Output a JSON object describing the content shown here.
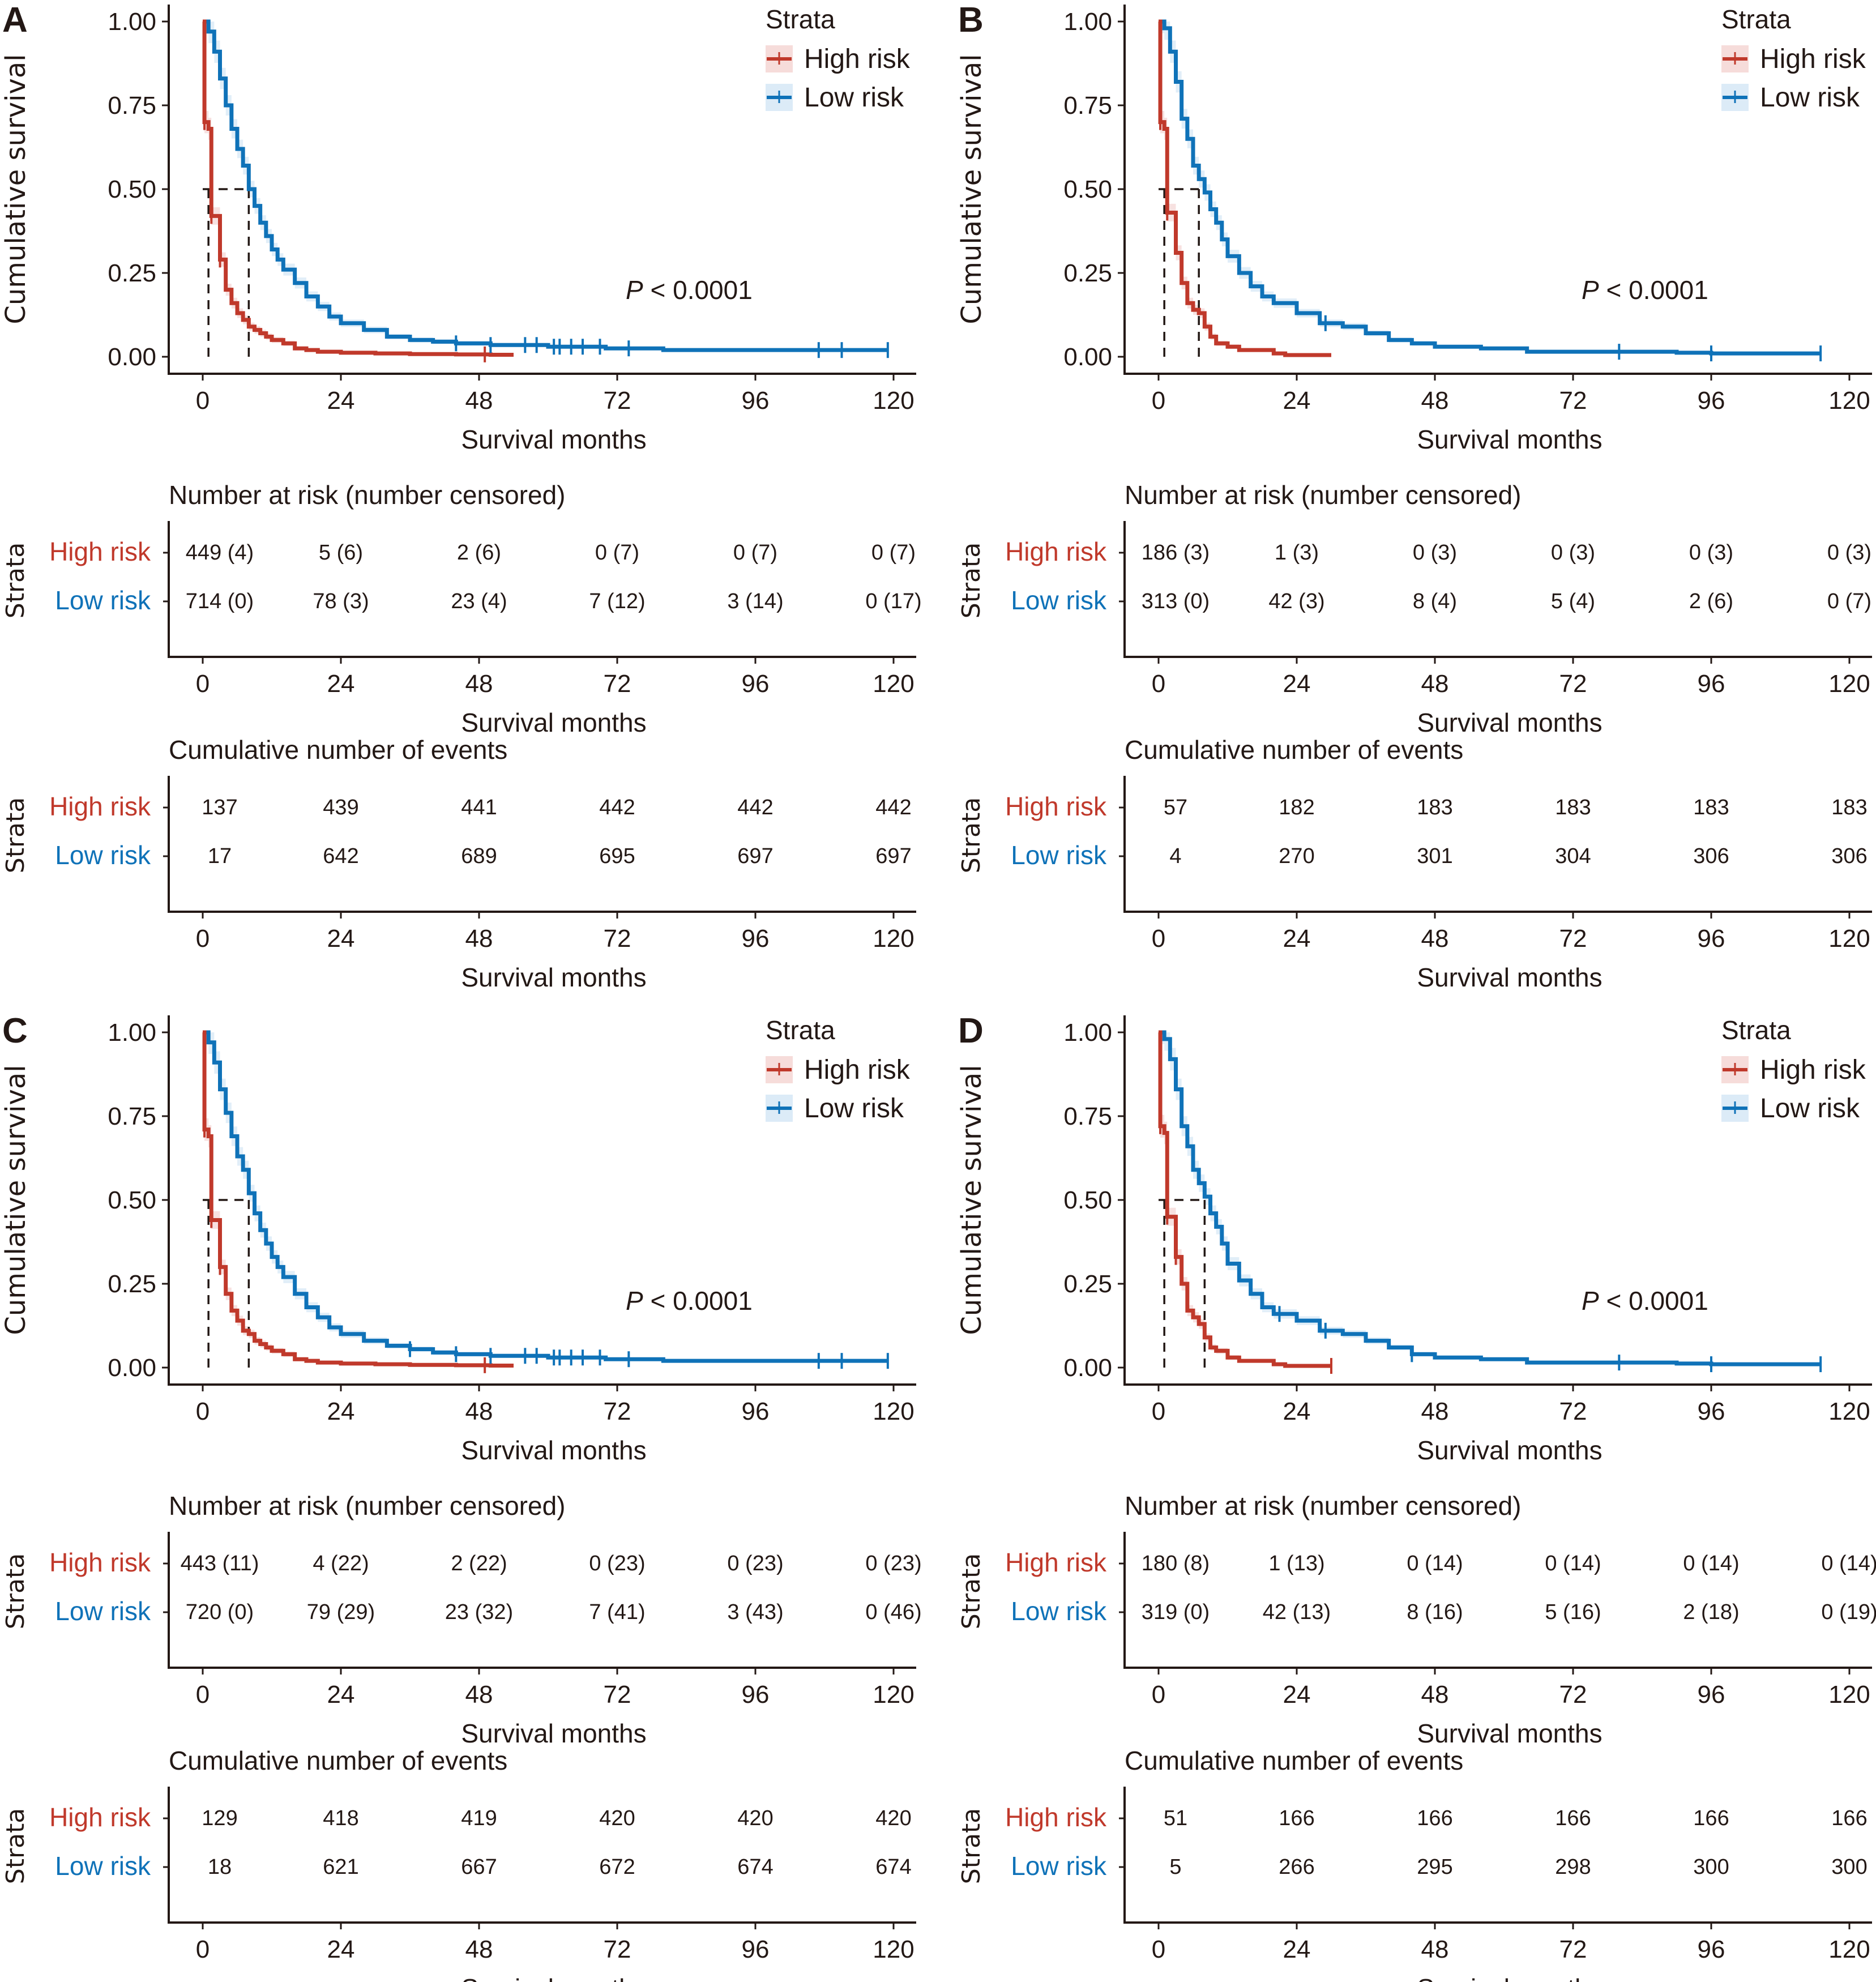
{
  "colors": {
    "high": "#c0392b",
    "low": "#0f72b8",
    "high_band": "#f6dcda",
    "low_band": "#dcebf7",
    "ink": "#231815"
  },
  "common": {
    "ylabel": "Cumulative survival",
    "xlabel": "Survival months",
    "legend_title": "Strata",
    "legend_high": "High risk",
    "legend_low": "Low risk",
    "p_prefix": "P",
    "p_rest": " < 0.0001",
    "risk_title": "Number at risk (number censored)",
    "events_title": "Cumulative number of events",
    "strata_label": "Strata",
    "row_high": "High risk",
    "row_low": "Low risk",
    "x_ticks": [
      "0",
      "24",
      "48",
      "72",
      "96",
      "120"
    ],
    "y_ticks": [
      "0.00",
      "0.25",
      "0.50",
      "0.75",
      "1.00"
    ]
  },
  "chart_data": [
    {
      "panel": "A",
      "type": "line",
      "title": "",
      "xlabel": "Survival months",
      "ylabel": "Cumulative survival",
      "xlim": [
        0,
        120
      ],
      "ylim": [
        0,
        1
      ],
      "x_ticks": [
        0,
        24,
        48,
        72,
        96,
        120
      ],
      "y_ticks": [
        0,
        0.25,
        0.5,
        0.75,
        1.0
      ],
      "legend": {
        "title": "Strata",
        "entries": [
          "High risk",
          "Low risk"
        ],
        "position": "top-right"
      },
      "annotation": "P < 0.0001",
      "median_survival": {
        "High risk": 1,
        "Low risk": 8
      },
      "series": [
        {
          "name": "High risk",
          "x": [
            0,
            0.3,
            1,
            1.5,
            2,
            3,
            4,
            5,
            6,
            7,
            8,
            9,
            10,
            11,
            12,
            14,
            16,
            18,
            20,
            24,
            30,
            36,
            44,
            50,
            54
          ],
          "y": [
            1.0,
            0.7,
            0.68,
            0.42,
            0.42,
            0.29,
            0.2,
            0.16,
            0.13,
            0.11,
            0.09,
            0.08,
            0.07,
            0.06,
            0.05,
            0.04,
            0.025,
            0.02,
            0.015,
            0.012,
            0.01,
            0.008,
            0.007,
            0.006,
            0.006
          ]
        },
        {
          "name": "Low risk",
          "x": [
            0,
            1,
            2,
            3,
            4,
            5,
            6,
            7,
            8,
            9,
            10,
            11,
            12,
            13,
            14,
            16,
            18,
            20,
            22,
            24,
            28,
            32,
            36,
            40,
            44,
            50,
            60,
            70,
            80,
            100,
            119
          ],
          "y": [
            1.0,
            0.97,
            0.91,
            0.83,
            0.75,
            0.68,
            0.62,
            0.57,
            0.5,
            0.45,
            0.4,
            0.36,
            0.32,
            0.29,
            0.26,
            0.22,
            0.18,
            0.15,
            0.12,
            0.1,
            0.08,
            0.06,
            0.05,
            0.045,
            0.04,
            0.035,
            0.03,
            0.025,
            0.02,
            0.02,
            0.02
          ]
        }
      ],
      "censor_low_x": [
        44,
        50,
        56,
        58,
        61,
        62,
        64,
        66,
        69,
        74,
        107,
        111,
        119
      ],
      "censor_high_x": [
        0.3,
        1.5,
        3,
        49
      ],
      "risk_table": {
        "High risk": [
          "449 (4)",
          "5 (6)",
          "2 (6)",
          "0 (7)",
          "0 (7)",
          "0 (7)"
        ],
        "Low risk": [
          "714 (0)",
          "78 (3)",
          "23 (4)",
          "7 (12)",
          "3 (14)",
          "0 (17)"
        ]
      },
      "events_table": {
        "High risk": [
          "137",
          "439",
          "441",
          "442",
          "442",
          "442"
        ],
        "Low risk": [
          "17",
          "642",
          "689",
          "695",
          "697",
          "697"
        ]
      }
    },
    {
      "panel": "B",
      "type": "line",
      "title": "",
      "xlabel": "Survival months",
      "ylabel": "Cumulative survival",
      "xlim": [
        0,
        120
      ],
      "ylim": [
        0,
        1
      ],
      "x_ticks": [
        0,
        24,
        48,
        72,
        96,
        120
      ],
      "y_ticks": [
        0,
        0.25,
        0.5,
        0.75,
        1.0
      ],
      "legend": {
        "title": "Strata",
        "entries": [
          "High risk",
          "Low risk"
        ],
        "position": "top-right"
      },
      "annotation": "P < 0.0001",
      "median_survival": {
        "High risk": 1,
        "Low risk": 7
      },
      "series": [
        {
          "name": "High risk",
          "x": [
            0,
            0.3,
            1,
            1.5,
            2,
            3,
            4,
            5,
            6,
            7,
            8,
            9,
            10,
            12,
            14,
            18,
            20,
            22,
            30
          ],
          "y": [
            1.0,
            0.7,
            0.68,
            0.43,
            0.43,
            0.31,
            0.22,
            0.16,
            0.14,
            0.13,
            0.09,
            0.06,
            0.04,
            0.03,
            0.02,
            0.02,
            0.01,
            0.005,
            0.005
          ]
        },
        {
          "name": "Low risk",
          "x": [
            0,
            1,
            2,
            3,
            4,
            5,
            6,
            7,
            8,
            9,
            10,
            11,
            12,
            14,
            16,
            18,
            20,
            24,
            28,
            32,
            36,
            40,
            44,
            48,
            56,
            64,
            80,
            90,
            96,
            115
          ],
          "y": [
            1.0,
            0.98,
            0.91,
            0.82,
            0.71,
            0.65,
            0.57,
            0.53,
            0.49,
            0.44,
            0.4,
            0.35,
            0.3,
            0.25,
            0.21,
            0.18,
            0.16,
            0.13,
            0.1,
            0.09,
            0.07,
            0.05,
            0.04,
            0.03,
            0.025,
            0.015,
            0.015,
            0.012,
            0.01,
            0.01
          ]
        }
      ],
      "censor_low_x": [
        29,
        80,
        96,
        115
      ],
      "censor_high_x": [
        0.3,
        1.5
      ],
      "risk_table": {
        "High risk": [
          "186 (3)",
          "1 (3)",
          "0 (3)",
          "0 (3)",
          "0 (3)",
          "0 (3)"
        ],
        "Low risk": [
          "313 (0)",
          "42 (3)",
          "8 (4)",
          "5 (4)",
          "2 (6)",
          "0 (7)"
        ]
      },
      "events_table": {
        "High risk": [
          "57",
          "182",
          "183",
          "183",
          "183",
          "183"
        ],
        "Low risk": [
          "4",
          "270",
          "301",
          "304",
          "306",
          "306"
        ]
      }
    },
    {
      "panel": "C",
      "type": "line",
      "title": "",
      "xlabel": "Survival months",
      "ylabel": "Cumulative survival",
      "xlim": [
        0,
        120
      ],
      "ylim": [
        0,
        1
      ],
      "x_ticks": [
        0,
        24,
        48,
        72,
        96,
        120
      ],
      "y_ticks": [
        0,
        0.25,
        0.5,
        0.75,
        1.0
      ],
      "legend": {
        "title": "Strata",
        "entries": [
          "High risk",
          "Low risk"
        ],
        "position": "top-right"
      },
      "annotation": "P < 0.0001",
      "median_survival": {
        "High risk": 1,
        "Low risk": 8
      },
      "series": [
        {
          "name": "High risk",
          "x": [
            0,
            0.3,
            1,
            1.5,
            2,
            3,
            4,
            5,
            6,
            7,
            8,
            9,
            10,
            11,
            12,
            14,
            16,
            18,
            20,
            24,
            30,
            36,
            44,
            50,
            54
          ],
          "y": [
            1.0,
            0.71,
            0.69,
            0.44,
            0.44,
            0.3,
            0.22,
            0.17,
            0.14,
            0.11,
            0.1,
            0.08,
            0.07,
            0.06,
            0.05,
            0.04,
            0.025,
            0.02,
            0.015,
            0.012,
            0.01,
            0.008,
            0.007,
            0.006,
            0.006
          ]
        },
        {
          "name": "Low risk",
          "x": [
            0,
            1,
            2,
            3,
            4,
            5,
            6,
            7,
            8,
            9,
            10,
            11,
            12,
            13,
            14,
            16,
            18,
            20,
            22,
            24,
            28,
            32,
            36,
            40,
            44,
            50,
            60,
            70,
            80,
            100,
            119
          ],
          "y": [
            1.0,
            0.97,
            0.91,
            0.83,
            0.76,
            0.69,
            0.63,
            0.59,
            0.52,
            0.46,
            0.41,
            0.37,
            0.33,
            0.3,
            0.27,
            0.22,
            0.18,
            0.15,
            0.12,
            0.1,
            0.08,
            0.065,
            0.055,
            0.045,
            0.04,
            0.035,
            0.03,
            0.025,
            0.02,
            0.02,
            0.02
          ]
        }
      ],
      "censor_low_x": [
        36,
        44,
        50,
        56,
        58,
        61,
        62,
        64,
        66,
        69,
        74,
        107,
        111,
        119
      ],
      "censor_high_x": [
        0.3,
        1.5,
        3,
        49
      ],
      "risk_table": {
        "High risk": [
          "443 (11)",
          "4 (22)",
          "2 (22)",
          "0 (23)",
          "0 (23)",
          "0 (23)"
        ],
        "Low risk": [
          "720 (0)",
          "79 (29)",
          "23 (32)",
          "7 (41)",
          "3 (43)",
          "0 (46)"
        ]
      },
      "events_table": {
        "High risk": [
          "129",
          "418",
          "419",
          "420",
          "420",
          "420"
        ],
        "Low risk": [
          "18",
          "621",
          "667",
          "672",
          "674",
          "674"
        ]
      }
    },
    {
      "panel": "D",
      "type": "line",
      "title": "",
      "xlabel": "Survival months",
      "ylabel": "Cumulative survival",
      "xlim": [
        0,
        120
      ],
      "ylim": [
        0,
        1
      ],
      "x_ticks": [
        0,
        24,
        48,
        72,
        96,
        120
      ],
      "y_ticks": [
        0,
        0.25,
        0.5,
        0.75,
        1.0
      ],
      "legend": {
        "title": "Strata",
        "entries": [
          "High risk",
          "Low risk"
        ],
        "position": "top-right"
      },
      "annotation": "P < 0.0001",
      "median_survival": {
        "High risk": 1,
        "Low risk": 8
      },
      "series": [
        {
          "name": "High risk",
          "x": [
            0,
            0.3,
            1,
            1.5,
            2,
            3,
            4,
            5,
            6,
            7,
            8,
            9,
            10,
            12,
            14,
            18,
            20,
            22,
            30
          ],
          "y": [
            1.0,
            0.72,
            0.7,
            0.45,
            0.45,
            0.33,
            0.25,
            0.17,
            0.15,
            0.13,
            0.09,
            0.06,
            0.05,
            0.03,
            0.02,
            0.02,
            0.01,
            0.005,
            0.005
          ]
        },
        {
          "name": "Low risk",
          "x": [
            0,
            1,
            2,
            3,
            4,
            5,
            6,
            7,
            8,
            9,
            10,
            11,
            12,
            14,
            16,
            18,
            20,
            24,
            28,
            32,
            36,
            40,
            44,
            48,
            56,
            64,
            80,
            90,
            96,
            115
          ],
          "y": [
            1.0,
            0.98,
            0.92,
            0.83,
            0.72,
            0.66,
            0.59,
            0.55,
            0.51,
            0.46,
            0.42,
            0.37,
            0.31,
            0.26,
            0.22,
            0.18,
            0.16,
            0.14,
            0.11,
            0.1,
            0.08,
            0.06,
            0.04,
            0.03,
            0.025,
            0.015,
            0.015,
            0.012,
            0.01,
            0.01
          ]
        }
      ],
      "censor_low_x": [
        21,
        29,
        44,
        80,
        96,
        115
      ],
      "censor_high_x": [
        0.3,
        1.5,
        3,
        30
      ],
      "risk_table": {
        "High risk": [
          "180 (8)",
          "1 (13)",
          "0 (14)",
          "0 (14)",
          "0 (14)",
          "0 (14)"
        ],
        "Low risk": [
          "319 (0)",
          "42 (13)",
          "8 (16)",
          "5 (16)",
          "2 (18)",
          "0 (19)"
        ]
      },
      "events_table": {
        "High risk": [
          "51",
          "166",
          "166",
          "166",
          "166",
          "166"
        ],
        "Low risk": [
          "5",
          "266",
          "295",
          "298",
          "300",
          "300"
        ]
      }
    }
  ]
}
